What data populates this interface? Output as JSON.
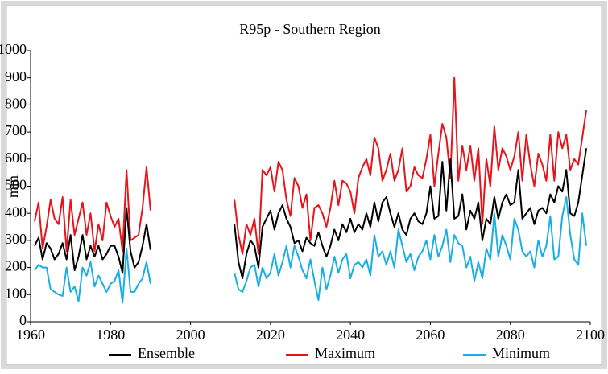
{
  "chart_data": {
    "type": "line",
    "title": "R95p - Southern Region",
    "y_label": "mm",
    "x": [
      1961,
      1962,
      1963,
      1964,
      1965,
      1966,
      1967,
      1968,
      1969,
      1970,
      1971,
      1972,
      1973,
      1974,
      1975,
      1976,
      1977,
      1978,
      1979,
      1980,
      1981,
      1982,
      1983,
      1984,
      1985,
      1986,
      1987,
      1988,
      1989,
      1990,
      1991,
      1992,
      1993,
      1994,
      1995,
      1996,
      1997,
      1998,
      1999,
      2000,
      2001,
      2002,
      2003,
      2004,
      2005,
      2006,
      2007,
      2008,
      2009,
      2010,
      2011,
      2012,
      2013,
      2014,
      2015,
      2016,
      2017,
      2018,
      2019,
      2020,
      2021,
      2022,
      2023,
      2024,
      2025,
      2026,
      2027,
      2028,
      2029,
      2030,
      2031,
      2032,
      2033,
      2034,
      2035,
      2036,
      2037,
      2038,
      2039,
      2040,
      2041,
      2042,
      2043,
      2044,
      2045,
      2046,
      2047,
      2048,
      2049,
      2050,
      2051,
      2052,
      2053,
      2054,
      2055,
      2056,
      2057,
      2058,
      2059,
      2060,
      2061,
      2062,
      2063,
      2064,
      2065,
      2066,
      2067,
      2068,
      2069,
      2070,
      2071,
      2072,
      2073,
      2074,
      2075,
      2076,
      2077,
      2078,
      2079,
      2080,
      2081,
      2082,
      2083,
      2084,
      2085,
      2086,
      2087,
      2088,
      2089,
      2090,
      2091,
      2092,
      2093,
      2094,
      2095,
      2096,
      2097,
      2098,
      2099
    ],
    "series": [
      {
        "name": "Ensemble",
        "color": "#000000",
        "values": [
          280,
          310,
          230,
          290,
          270,
          230,
          250,
          290,
          230,
          320,
          190,
          240,
          320,
          230,
          280,
          240,
          280,
          230,
          250,
          280,
          280,
          240,
          180,
          420,
          260,
          200,
          220,
          280,
          360,
          265,
          null,
          null,
          null,
          null,
          null,
          null,
          null,
          null,
          null,
          null,
          null,
          null,
          null,
          null,
          null,
          null,
          null,
          null,
          null,
          null,
          360,
          220,
          160,
          250,
          300,
          280,
          200,
          350,
          380,
          410,
          340,
          400,
          430,
          380,
          350,
          290,
          300,
          260,
          310,
          290,
          280,
          330,
          280,
          240,
          280,
          340,
          300,
          360,
          330,
          380,
          330,
          360,
          340,
          400,
          350,
          440,
          370,
          440,
          460,
          400,
          350,
          400,
          340,
          320,
          380,
          400,
          370,
          360,
          400,
          500,
          380,
          390,
          590,
          410,
          600,
          380,
          390,
          470,
          340,
          410,
          380,
          440,
          300,
          380,
          360,
          460,
          380,
          440,
          470,
          430,
          440,
          560,
          380,
          400,
          420,
          360,
          410,
          420,
          400,
          470,
          440,
          500,
          480,
          560,
          400,
          390,
          440,
          540,
          640
        ]
      },
      {
        "name": "Maximum",
        "color": "#e8141c",
        "values": [
          370,
          440,
          270,
          350,
          450,
          380,
          360,
          460,
          260,
          450,
          320,
          380,
          440,
          320,
          400,
          260,
          360,
          300,
          440,
          390,
          350,
          380,
          260,
          560,
          300,
          310,
          320,
          420,
          570,
          410,
          null,
          null,
          null,
          null,
          null,
          null,
          null,
          null,
          null,
          null,
          null,
          null,
          null,
          null,
          null,
          null,
          null,
          null,
          null,
          null,
          450,
          320,
          250,
          360,
          320,
          380,
          250,
          560,
          540,
          570,
          480,
          590,
          560,
          450,
          390,
          530,
          500,
          420,
          470,
          300,
          420,
          430,
          400,
          350,
          420,
          520,
          430,
          520,
          510,
          480,
          400,
          530,
          570,
          600,
          540,
          680,
          640,
          520,
          560,
          620,
          520,
          560,
          640,
          480,
          500,
          570,
          540,
          530,
          600,
          690,
          500,
          620,
          730,
          680,
          530,
          900,
          520,
          650,
          560,
          650,
          520,
          640,
          360,
          600,
          500,
          720,
          560,
          640,
          610,
          560,
          610,
          700,
          520,
          690,
          580,
          500,
          620,
          580,
          520,
          690,
          520,
          700,
          640,
          690,
          560,
          600,
          580,
          680,
          780
        ]
      },
      {
        "name": "Minimum",
        "color": "#1aaee6",
        "values": [
          190,
          210,
          200,
          200,
          120,
          110,
          100,
          95,
          200,
          110,
          130,
          75,
          200,
          170,
          220,
          130,
          170,
          140,
          110,
          140,
          150,
          190,
          70,
          270,
          110,
          110,
          140,
          160,
          220,
          140,
          null,
          null,
          null,
          null,
          null,
          null,
          null,
          null,
          null,
          null,
          null,
          null,
          null,
          null,
          null,
          null,
          null,
          null,
          null,
          null,
          180,
          120,
          110,
          150,
          200,
          210,
          130,
          200,
          160,
          180,
          250,
          170,
          220,
          280,
          200,
          280,
          240,
          190,
          160,
          230,
          150,
          80,
          200,
          120,
          170,
          240,
          180,
          230,
          250,
          160,
          210,
          220,
          200,
          230,
          170,
          320,
          240,
          260,
          210,
          260,
          200,
          340,
          280,
          220,
          250,
          190,
          240,
          260,
          300,
          230,
          320,
          240,
          280,
          340,
          220,
          320,
          290,
          280,
          200,
          240,
          150,
          220,
          160,
          270,
          230,
          400,
          240,
          320,
          280,
          230,
          380,
          340,
          260,
          240,
          260,
          200,
          300,
          240,
          280,
          390,
          230,
          240,
          390,
          460,
          320,
          230,
          210,
          400,
          280
        ]
      }
    ],
    "xlim": [
      1960,
      2100
    ],
    "xticks": [
      1960,
      1980,
      2000,
      2020,
      2040,
      2060,
      2080,
      2100
    ],
    "ylim": [
      0,
      1000
    ],
    "yticks": [
      0,
      100,
      200,
      300,
      400,
      500,
      600,
      700,
      800,
      900,
      1000
    ]
  }
}
